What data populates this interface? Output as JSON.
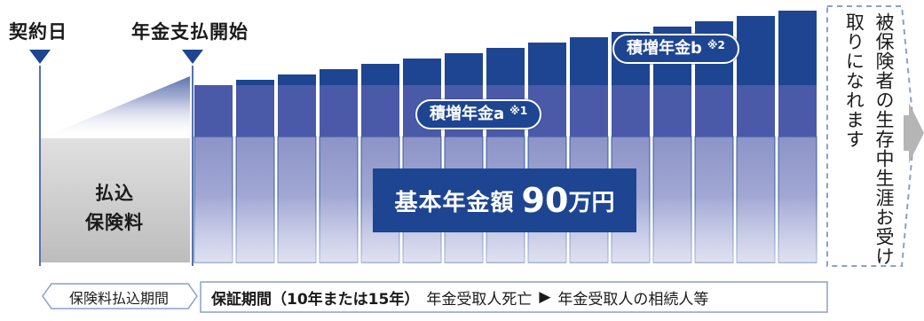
{
  "labels": {
    "contract_date": "契約日",
    "pension_start": "年金支払開始",
    "premium_line1": "払込",
    "premium_line2": "保険料",
    "accum_a": "積増年金a",
    "accum_a_note": "※1",
    "accum_b": "積増年金b",
    "accum_b_note": "※2",
    "basic_pension_prefix": "基本年金額",
    "basic_pension_amount": "90",
    "basic_pension_unit": "万円",
    "lifetime_text": "被保険者の生存中生涯お受け取りになれます",
    "premium_period": "保険料払込期間",
    "guarantee_period": "保証期間（10年または15年）",
    "death_case": "年金受取人死亡",
    "arrow_mark": "▶",
    "heir": "年金受取人の相続人等"
  },
  "chart_data": {
    "type": "bar",
    "bars": 15,
    "basic_value": 90,
    "accumulated_increment_relative": [
      0,
      1,
      2,
      3,
      4,
      5,
      6,
      7,
      8,
      9,
      10,
      11,
      12,
      13,
      14
    ]
  },
  "colors": {
    "navy": "#1e4591",
    "light_bar": "#9fa6cf",
    "premium_box": "#d0d0d0",
    "dashed": "#8aa0c8",
    "arrow_gray": "#b5b5b5"
  }
}
